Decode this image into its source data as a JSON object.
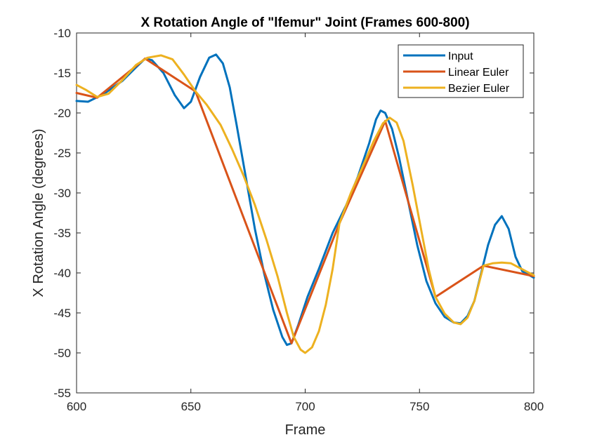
{
  "chart_data": {
    "type": "line",
    "title": "X Rotation Angle of \"lfemur\" Joint (Frames 600-800)",
    "xlabel": "Frame",
    "ylabel": "X Rotation Angle (degrees)",
    "xlim": [
      600,
      800
    ],
    "ylim": [
      -55,
      -10
    ],
    "xticks": [
      600,
      650,
      700,
      750,
      800
    ],
    "yticks": [
      -55,
      -50,
      -45,
      -40,
      -35,
      -30,
      -25,
      -20,
      -15,
      -10
    ],
    "grid": false,
    "legend_position": "top-right",
    "series": [
      {
        "name": "Input",
        "color": "#0072BD",
        "points": [
          [
            600,
            -18.5
          ],
          [
            605,
            -18.6
          ],
          [
            612,
            -17.6
          ],
          [
            620,
            -16.0
          ],
          [
            626,
            -14.3
          ],
          [
            630,
            -13.2
          ],
          [
            633,
            -13.4
          ],
          [
            638,
            -15.0
          ],
          [
            643,
            -17.8
          ],
          [
            647,
            -19.4
          ],
          [
            650,
            -18.6
          ],
          [
            654,
            -15.5
          ],
          [
            658,
            -13.1
          ],
          [
            661,
            -12.7
          ],
          [
            664,
            -13.8
          ],
          [
            667,
            -16.8
          ],
          [
            670,
            -21.5
          ],
          [
            674,
            -28.0
          ],
          [
            678,
            -34.5
          ],
          [
            682,
            -40.0
          ],
          [
            686,
            -44.6
          ],
          [
            690,
            -48.0
          ],
          [
            692,
            -49.0
          ],
          [
            694,
            -48.8
          ],
          [
            697,
            -46.5
          ],
          [
            701,
            -43.0
          ],
          [
            706,
            -39.5
          ],
          [
            712,
            -35.0
          ],
          [
            718,
            -31.5
          ],
          [
            723,
            -28.0
          ],
          [
            728,
            -23.8
          ],
          [
            731,
            -20.8
          ],
          [
            733,
            -19.7
          ],
          [
            735,
            -20.0
          ],
          [
            738,
            -22.0
          ],
          [
            741,
            -25.5
          ],
          [
            745,
            -31.0
          ],
          [
            749,
            -36.5
          ],
          [
            753,
            -41.0
          ],
          [
            757,
            -43.8
          ],
          [
            761,
            -45.5
          ],
          [
            765,
            -46.2
          ],
          [
            768,
            -46.3
          ],
          [
            771,
            -45.4
          ],
          [
            774,
            -43.5
          ],
          [
            777,
            -40.0
          ],
          [
            780,
            -36.5
          ],
          [
            783,
            -34.0
          ],
          [
            786,
            -32.9
          ],
          [
            789,
            -34.5
          ],
          [
            792,
            -38.0
          ],
          [
            795,
            -39.8
          ],
          [
            800,
            -40.6
          ]
        ]
      },
      {
        "name": "Linear Euler",
        "color": "#D95319",
        "points": [
          [
            600,
            -17.5
          ],
          [
            609,
            -18.1
          ],
          [
            630,
            -13.2
          ],
          [
            652,
            -17.3
          ],
          [
            694,
            -48.8
          ],
          [
            715,
            -33.8
          ],
          [
            735,
            -21.0
          ],
          [
            757,
            -43.0
          ],
          [
            778,
            -39.1
          ],
          [
            800,
            -40.4
          ]
        ]
      },
      {
        "name": "Bezier Euler",
        "color": "#EDB120",
        "points": [
          [
            600,
            -16.5
          ],
          [
            604,
            -17.1
          ],
          [
            609,
            -18.0
          ],
          [
            614,
            -17.6
          ],
          [
            620,
            -15.9
          ],
          [
            626,
            -14.0
          ],
          [
            631,
            -13.1
          ],
          [
            637,
            -12.8
          ],
          [
            642,
            -13.3
          ],
          [
            647,
            -15.2
          ],
          [
            652,
            -17.3
          ],
          [
            657,
            -19.0
          ],
          [
            663,
            -21.5
          ],
          [
            668,
            -24.5
          ],
          [
            673,
            -27.8
          ],
          [
            678,
            -31.5
          ],
          [
            683,
            -35.8
          ],
          [
            688,
            -40.5
          ],
          [
            692,
            -45.0
          ],
          [
            695,
            -48.0
          ],
          [
            698,
            -49.6
          ],
          [
            700,
            -50.0
          ],
          [
            703,
            -49.3
          ],
          [
            706,
            -47.3
          ],
          [
            709,
            -44.0
          ],
          [
            712,
            -39.5
          ],
          [
            715,
            -33.8
          ],
          [
            720,
            -30.0
          ],
          [
            725,
            -26.8
          ],
          [
            730,
            -23.5
          ],
          [
            734,
            -21.3
          ],
          [
            737,
            -20.6
          ],
          [
            740,
            -21.2
          ],
          [
            743,
            -23.5
          ],
          [
            747,
            -29.0
          ],
          [
            751,
            -35.0
          ],
          [
            754,
            -39.5
          ],
          [
            757,
            -43.0
          ],
          [
            761,
            -45.1
          ],
          [
            765,
            -46.2
          ],
          [
            768,
            -46.4
          ],
          [
            771,
            -45.6
          ],
          [
            774,
            -43.5
          ],
          [
            778,
            -39.1
          ],
          [
            782,
            -38.8
          ],
          [
            786,
            -38.7
          ],
          [
            790,
            -38.8
          ],
          [
            794,
            -39.4
          ],
          [
            800,
            -40.3
          ]
        ]
      }
    ]
  }
}
